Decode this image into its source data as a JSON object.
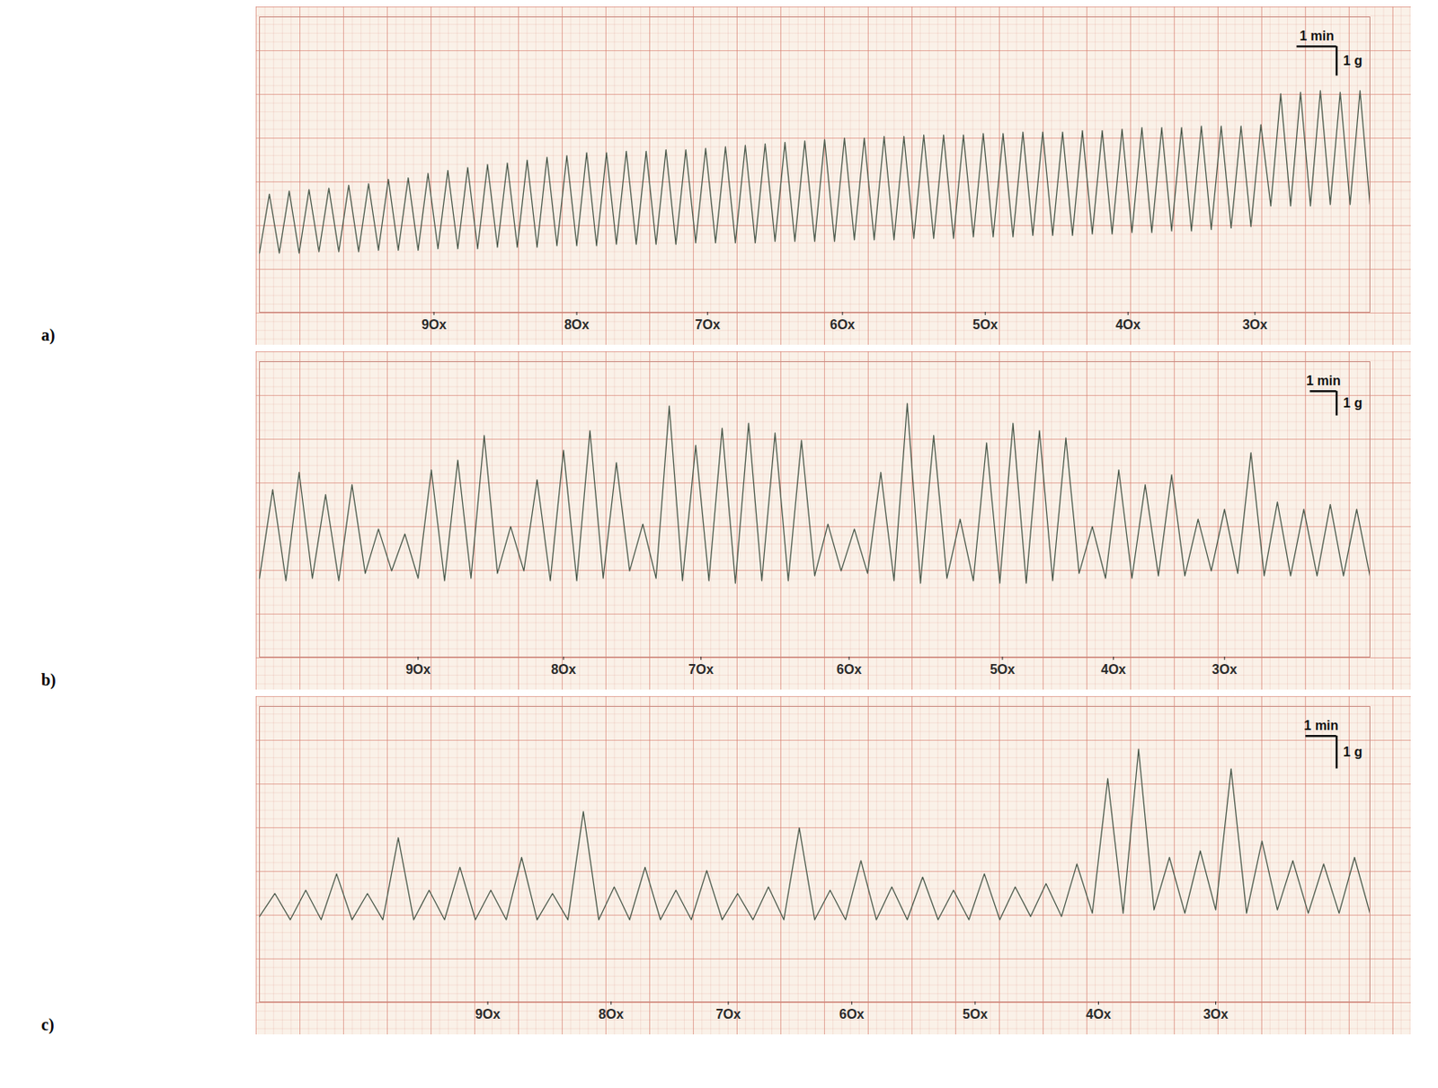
{
  "chart_data": [
    {
      "type": "line",
      "panel": "a)",
      "color": "#4b5a4c",
      "grid": true,
      "tick_labels": "x",
      "xlim": [
        0,
        28
      ],
      "ylim": [
        0,
        10
      ],
      "xticks": [
        {
          "value": 4.4,
          "label": "9Ox"
        },
        {
          "value": 8.0,
          "label": "8Ox"
        },
        {
          "value": 11.3,
          "label": "7Ox"
        },
        {
          "value": 14.7,
          "label": "6Ox"
        },
        {
          "value": 18.3,
          "label": "5Ox"
        },
        {
          "value": 21.9,
          "label": "4Ox"
        },
        {
          "value": 25.1,
          "label": "3Ox"
        }
      ],
      "scale_bar": {
        "x_label": "1 min",
        "x_value": 1,
        "y_label": "1 g",
        "y_value": 1
      },
      "x": [
        0,
        0.25,
        0.5,
        0.75,
        1,
        1.25,
        1.5,
        1.75,
        2,
        2.25,
        2.5,
        2.75,
        3,
        3.25,
        3.5,
        3.75,
        4,
        4.25,
        4.5,
        4.75,
        5,
        5.25,
        5.5,
        5.75,
        6,
        6.25,
        6.5,
        6.75,
        7,
        7.25,
        7.5,
        7.75,
        8,
        8.25,
        8.5,
        8.75,
        9,
        9.25,
        9.5,
        9.75,
        10,
        10.25,
        10.5,
        10.75,
        11,
        11.25,
        11.5,
        11.75,
        12,
        12.25,
        12.5,
        12.75,
        13,
        13.25,
        13.5,
        13.75,
        14,
        14.25,
        14.5,
        14.75,
        15,
        15.25,
        15.5,
        15.75,
        16,
        16.25,
        16.5,
        16.75,
        17,
        17.25,
        17.5,
        17.75,
        18,
        18.25,
        18.5,
        18.75,
        19,
        19.25,
        19.5,
        19.75,
        20,
        20.25,
        20.5,
        20.75,
        21,
        21.25,
        21.5,
        21.75,
        22,
        22.25,
        22.5,
        22.75,
        23,
        23.25,
        23.5,
        23.75,
        24,
        24.25,
        24.5,
        24.75,
        25,
        25.25,
        25.5,
        25.75,
        26,
        26.25,
        26.5,
        26.75,
        27,
        27.25,
        27.5,
        27.75,
        28
      ],
      "values": [
        2.0,
        4.0,
        2.0,
        4.1,
        2.0,
        4.15,
        2.05,
        4.2,
        2.05,
        4.3,
        2.05,
        4.35,
        2.1,
        4.5,
        2.1,
        4.55,
        2.1,
        4.7,
        2.15,
        4.8,
        2.15,
        4.9,
        2.15,
        5.0,
        2.2,
        5.05,
        2.2,
        5.15,
        2.2,
        5.25,
        2.25,
        5.3,
        2.25,
        5.4,
        2.25,
        5.4,
        2.3,
        5.45,
        2.3,
        5.45,
        2.3,
        5.5,
        2.3,
        5.5,
        2.35,
        5.55,
        2.35,
        5.6,
        2.35,
        5.65,
        2.35,
        5.7,
        2.4,
        5.75,
        2.4,
        5.8,
        2.4,
        5.85,
        2.4,
        5.9,
        2.45,
        5.9,
        2.45,
        5.95,
        2.45,
        5.95,
        2.5,
        6.0,
        2.5,
        6.0,
        2.5,
        6.0,
        2.55,
        6.05,
        2.55,
        6.05,
        2.55,
        6.1,
        2.6,
        6.1,
        2.6,
        6.1,
        2.6,
        6.15,
        2.65,
        6.15,
        2.65,
        6.2,
        2.7,
        6.25,
        2.7,
        6.25,
        2.75,
        6.25,
        2.75,
        6.3,
        2.8,
        6.3,
        2.85,
        6.3,
        2.9,
        6.35,
        3.6,
        7.4,
        3.6,
        7.45,
        3.6,
        7.5,
        3.65,
        7.45,
        3.65,
        7.5,
        3.65
      ]
    },
    {
      "type": "line",
      "panel": "b)",
      "color": "#4b5a4c",
      "grid": true,
      "tick_labels": "x",
      "xlim": [
        0,
        42
      ],
      "ylim": [
        0,
        12
      ],
      "xticks": [
        {
          "value": 6.0,
          "label": "9Ox"
        },
        {
          "value": 11.5,
          "label": "8Ox"
        },
        {
          "value": 16.7,
          "label": "7Ox"
        },
        {
          "value": 22.3,
          "label": "6Ox"
        },
        {
          "value": 28.1,
          "label": "5Ox"
        },
        {
          "value": 32.3,
          "label": "4Ox"
        },
        {
          "value": 36.5,
          "label": "3Ox"
        }
      ],
      "scale_bar": {
        "x_label": "1 min",
        "x_value": 1,
        "y_label": "1 g",
        "y_value": 1
      },
      "x": [
        0,
        0.5,
        1,
        1.5,
        2,
        2.5,
        3,
        3.5,
        4,
        4.5,
        5,
        5.5,
        6,
        6.5,
        7,
        7.5,
        8,
        8.5,
        9,
        9.5,
        10,
        10.5,
        11,
        11.5,
        12,
        12.5,
        13,
        13.5,
        14,
        14.5,
        15,
        15.5,
        16,
        16.5,
        17,
        17.5,
        18,
        18.5,
        19,
        19.5,
        20,
        20.5,
        21,
        21.5,
        22,
        22.5,
        23,
        23.5,
        24,
        24.5,
        25,
        25.5,
        26,
        26.5,
        27,
        27.5,
        28,
        28.5,
        29,
        29.5,
        30,
        30.5,
        31,
        31.5,
        32,
        32.5,
        33,
        33.5,
        34,
        34.5,
        35,
        35.5,
        36,
        36.5,
        37,
        37.5,
        38,
        38.5,
        39,
        39.5,
        40,
        40.5,
        41,
        41.5,
        42
      ],
      "values": [
        3.2,
        6.8,
        3.1,
        7.5,
        3.2,
        6.6,
        3.1,
        7.0,
        3.4,
        5.2,
        3.5,
        5.0,
        3.2,
        7.6,
        3.1,
        8.0,
        3.2,
        9.0,
        3.4,
        5.3,
        3.5,
        7.2,
        3.1,
        8.4,
        3.1,
        9.2,
        3.2,
        7.9,
        3.5,
        5.4,
        3.2,
        10.2,
        3.1,
        8.6,
        3.1,
        9.3,
        3.0,
        9.5,
        3.1,
        9.1,
        3.1,
        8.8,
        3.3,
        5.4,
        3.5,
        5.2,
        3.4,
        7.5,
        3.1,
        10.3,
        3.0,
        9.0,
        3.2,
        5.6,
        3.1,
        8.7,
        3.0,
        9.5,
        3.0,
        9.2,
        3.1,
        8.9,
        3.4,
        5.3,
        3.2,
        7.6,
        3.2,
        7.0,
        3.3,
        7.4,
        3.3,
        5.6,
        3.5,
        6.0,
        3.4,
        8.3,
        3.3,
        6.3,
        3.3,
        6.0,
        3.3,
        6.2,
        3.3,
        6.0,
        3.3
      ]
    },
    {
      "type": "line",
      "panel": "c)",
      "color": "#4b5a4c",
      "grid": true,
      "tick_labels": "x",
      "xlim": [
        0,
        36
      ],
      "ylim": [
        0,
        9
      ],
      "xticks": [
        {
          "value": 7.4,
          "label": "9Ox"
        },
        {
          "value": 11.4,
          "label": "8Ox"
        },
        {
          "value": 15.2,
          "label": "7Ox"
        },
        {
          "value": 19.2,
          "label": "6Ox"
        },
        {
          "value": 23.2,
          "label": "5Ox"
        },
        {
          "value": 27.2,
          "label": "4Ox"
        },
        {
          "value": 31.0,
          "label": "3Ox"
        }
      ],
      "scale_bar": {
        "x_label": "1 min",
        "x_value": 1,
        "y_label": "1 g",
        "y_value": 1
      },
      "x": [
        0,
        0.5,
        1,
        1.5,
        2,
        2.5,
        3,
        3.5,
        4,
        4.5,
        5,
        5.5,
        6,
        6.5,
        7,
        7.5,
        8,
        8.5,
        9,
        9.5,
        10,
        10.5,
        11,
        11.5,
        12,
        12.5,
        13,
        13.5,
        14,
        14.5,
        15,
        15.5,
        16,
        16.5,
        17,
        17.5,
        18,
        18.5,
        19,
        19.5,
        20,
        20.5,
        21,
        21.5,
        22,
        22.5,
        23,
        23.5,
        24,
        24.5,
        25,
        25.5,
        26,
        26.5,
        27,
        27.5,
        28,
        28.5,
        29,
        29.5,
        30,
        30.5,
        31,
        31.5,
        32,
        32.5,
        33,
        33.5,
        34,
        34.5,
        35,
        35.5,
        36
      ],
      "values": [
        2.6,
        3.3,
        2.5,
        3.4,
        2.5,
        3.9,
        2.5,
        3.3,
        2.5,
        5.0,
        2.5,
        3.4,
        2.5,
        4.1,
        2.5,
        3.4,
        2.5,
        4.4,
        2.5,
        3.3,
        2.5,
        5.8,
        2.5,
        3.5,
        2.5,
        4.1,
        2.5,
        3.4,
        2.5,
        4.0,
        2.5,
        3.3,
        2.5,
        3.5,
        2.5,
        5.3,
        2.5,
        3.4,
        2.5,
        4.3,
        2.5,
        3.5,
        2.5,
        3.8,
        2.5,
        3.4,
        2.5,
        3.9,
        2.5,
        3.5,
        2.6,
        3.6,
        2.6,
        4.2,
        2.7,
        6.8,
        2.7,
        7.7,
        2.8,
        4.4,
        2.7,
        4.6,
        2.8,
        7.1,
        2.7,
        4.9,
        2.8,
        4.3,
        2.7,
        4.2,
        2.7,
        4.4,
        2.7
      ]
    }
  ]
}
